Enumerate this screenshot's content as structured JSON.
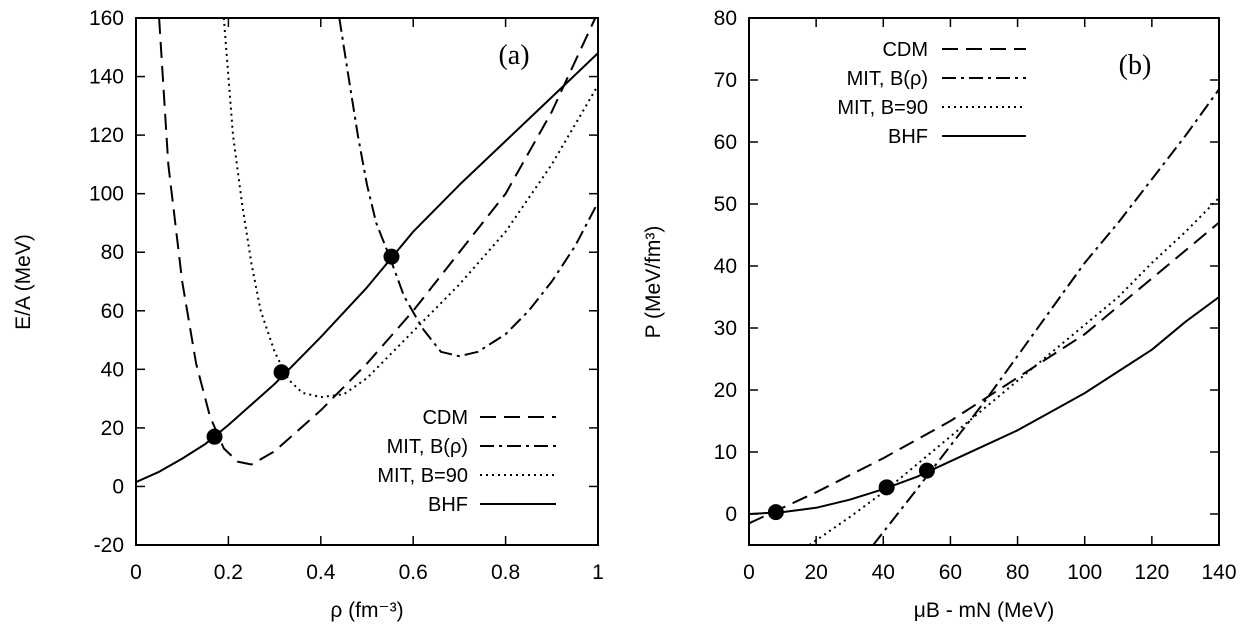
{
  "chart_data": [
    {
      "type": "line",
      "panel_label": "(a)",
      "xlabel": "ρ (fm⁻³)",
      "ylabel": "E/A  (MeV)",
      "xlim": [
        0,
        1
      ],
      "ylim": [
        -20,
        160
      ],
      "xticks": [
        "0",
        "0.2",
        "0.4",
        "0.6",
        "0.8",
        "1"
      ],
      "yticks": [
        "-20",
        "0",
        "20",
        "40",
        "60",
        "80",
        "100",
        "120",
        "140",
        "160"
      ],
      "legend_position": "bottom-right",
      "series": [
        {
          "name": "CDM",
          "style": "dashed",
          "x": [
            0.05,
            0.07,
            0.1,
            0.13,
            0.16,
            0.19,
            0.22,
            0.25,
            0.3,
            0.4,
            0.5,
            0.6,
            0.7,
            0.8,
            0.9,
            1.0
          ],
          "y": [
            160,
            110,
            70,
            42,
            24,
            13,
            8.5,
            7.5,
            12,
            26,
            42,
            60,
            80,
            100,
            128,
            162
          ]
        },
        {
          "name": "MIT, B(ρ)",
          "style": "dashdot",
          "x": [
            0.44,
            0.46,
            0.48,
            0.5,
            0.52,
            0.55,
            0.58,
            0.62,
            0.66,
            0.7,
            0.74,
            0.8,
            0.85,
            0.9,
            0.95,
            1.0
          ],
          "y": [
            160,
            140,
            120,
            103,
            90,
            78,
            65,
            54,
            46,
            44.5,
            46,
            52,
            60,
            70,
            82,
            97
          ]
        },
        {
          "name": "MIT, B=90",
          "style": "dotted",
          "x": [
            0.19,
            0.21,
            0.23,
            0.25,
            0.27,
            0.3,
            0.33,
            0.36,
            0.4,
            0.45,
            0.5,
            0.6,
            0.7,
            0.8,
            0.9,
            1.0
          ],
          "y": [
            160,
            120,
            96,
            76,
            60,
            46,
            36.5,
            32,
            30.5,
            31.5,
            37,
            53,
            69,
            87,
            110,
            137
          ]
        },
        {
          "name": "BHF",
          "style": "solid",
          "x": [
            0.0,
            0.05,
            0.1,
            0.15,
            0.2,
            0.25,
            0.3,
            0.4,
            0.5,
            0.6,
            0.7,
            0.8,
            0.9,
            1.0
          ],
          "y": [
            1.5,
            5,
            9.5,
            14.5,
            21,
            28,
            35,
            51,
            68,
            87,
            103,
            118,
            133,
            148
          ]
        }
      ],
      "markers": {
        "x": [
          0.17,
          0.315,
          0.553
        ],
        "y": [
          17,
          39,
          78.5
        ]
      }
    },
    {
      "type": "line",
      "panel_label": "(b)",
      "xlabel": "μB - mN (MeV)",
      "ylabel": "P (MeV/fm³)",
      "xlim": [
        0,
        140
      ],
      "ylim": [
        -5,
        80
      ],
      "xticks": [
        "0",
        "20",
        "40",
        "60",
        "80",
        "100",
        "120",
        "140"
      ],
      "yticks": [
        "0",
        "10",
        "20",
        "30",
        "40",
        "50",
        "60",
        "70",
        "80"
      ],
      "legend_position": "top-left",
      "series": [
        {
          "name": "CDM",
          "style": "dashed",
          "x": [
            0,
            20,
            40,
            60,
            80,
            100,
            120,
            140
          ],
          "y": [
            -1.5,
            3.5,
            9,
            15,
            22,
            29,
            38,
            47
          ]
        },
        {
          "name": "MIT, B(ρ)",
          "style": "dashdot",
          "x": [
            37,
            50,
            60,
            70,
            80,
            90,
            100,
            110,
            120,
            130,
            140
          ],
          "y": [
            -5,
            4,
            11,
            18,
            25.5,
            33,
            40.5,
            47,
            54,
            61,
            68.5
          ]
        },
        {
          "name": "MIT, B=90",
          "style": "dotted",
          "x": [
            18,
            30,
            40,
            50,
            60,
            70,
            80,
            90,
            100,
            110,
            120,
            130,
            140
          ],
          "y": [
            -5,
            -0.5,
            3.5,
            8,
            12.5,
            17,
            21.5,
            26,
            30.5,
            35,
            40.5,
            45.5,
            51
          ]
        },
        {
          "name": "BHF",
          "style": "solid",
          "x": [
            0,
            10,
            20,
            30,
            40,
            50,
            60,
            70,
            80,
            90,
            100,
            110,
            120,
            130,
            140
          ],
          "y": [
            0,
            0.3,
            1,
            2.3,
            4,
            6,
            8.5,
            11,
            13.5,
            16.5,
            19.5,
            23,
            26.5,
            31,
            35
          ]
        }
      ],
      "markers": {
        "x": [
          8,
          41,
          53
        ],
        "y": [
          0.3,
          4.3,
          7
        ]
      }
    }
  ]
}
